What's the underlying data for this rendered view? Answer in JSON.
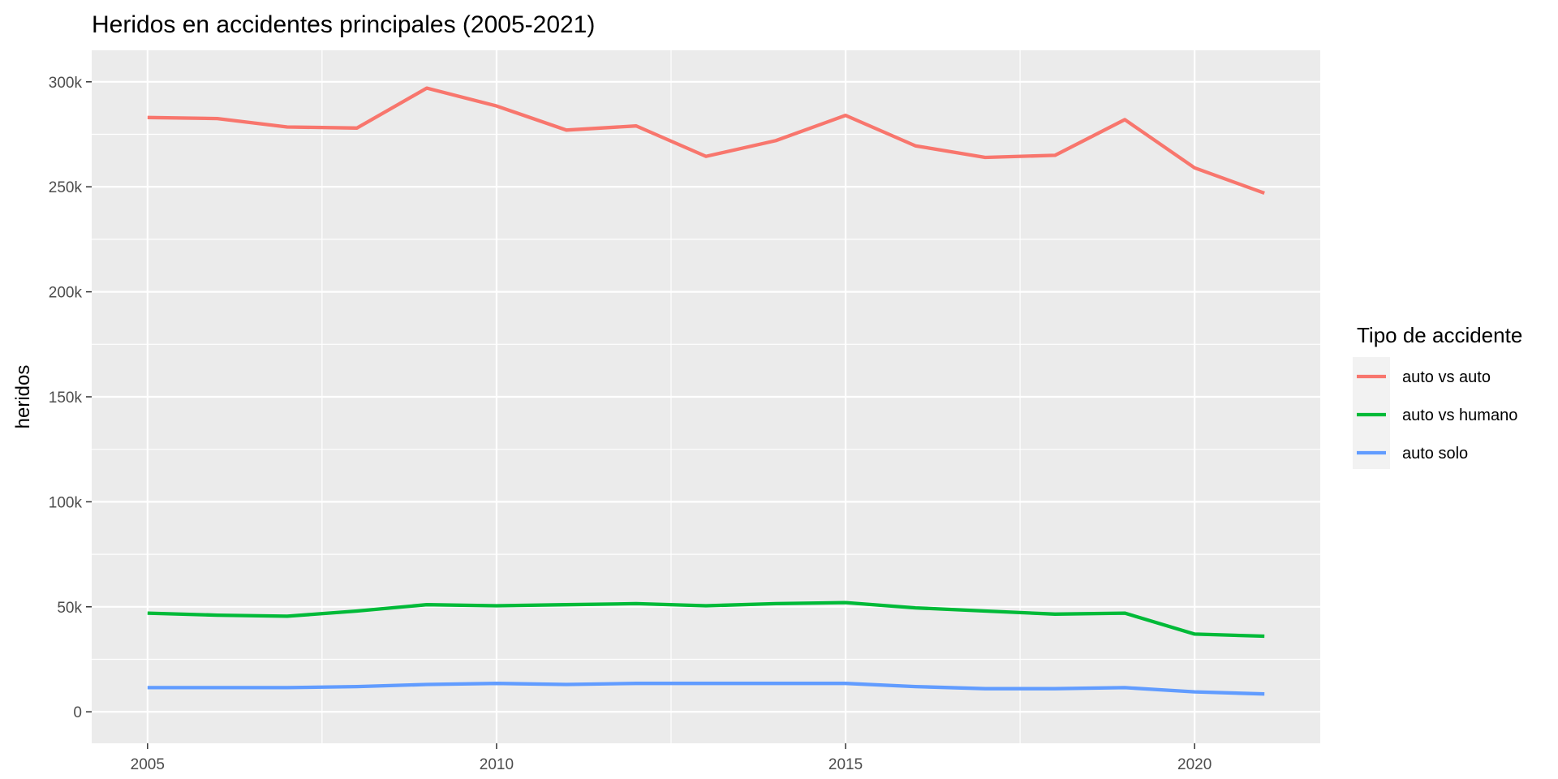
{
  "chart_data": {
    "type": "line",
    "title": "Heridos en accidentes principales (2005-2021)",
    "xlabel": "",
    "ylabel": "heridos",
    "x": [
      2005,
      2006,
      2007,
      2008,
      2009,
      2010,
      2011,
      2012,
      2013,
      2014,
      2015,
      2016,
      2017,
      2018,
      2019,
      2020,
      2021
    ],
    "xlim": [
      2004.2,
      2021.8
    ],
    "ylim": [
      -15000,
      315000
    ],
    "x_ticks": [
      2005,
      2010,
      2015,
      2020
    ],
    "x_tick_labels": [
      "2005",
      "2010",
      "2015",
      "2020"
    ],
    "y_ticks": [
      0,
      50000,
      100000,
      150000,
      200000,
      250000,
      300000
    ],
    "y_tick_labels": [
      "0",
      "50k",
      "100k",
      "150k",
      "200k",
      "250k",
      "300k"
    ],
    "grid": true,
    "legend": {
      "title": "Tipo de accidente",
      "position": "right"
    },
    "series": [
      {
        "name": "auto vs auto",
        "color": "#F8766D",
        "values": [
          283000,
          282500,
          278500,
          278000,
          297000,
          288500,
          277000,
          279000,
          264500,
          272000,
          284000,
          269500,
          264000,
          265000,
          282000,
          259000,
          247000
        ]
      },
      {
        "name": "auto vs humano",
        "color": "#00BA38",
        "values": [
          47000,
          46000,
          45500,
          48000,
          51000,
          50500,
          51000,
          51500,
          50500,
          51500,
          52000,
          49500,
          48000,
          46500,
          47000,
          37000,
          36000
        ]
      },
      {
        "name": "auto solo",
        "color": "#619CFF",
        "values": [
          11500,
          11500,
          11500,
          12000,
          13000,
          13500,
          13000,
          13500,
          13500,
          13500,
          13500,
          12000,
          11000,
          11000,
          11500,
          9500,
          8500
        ]
      }
    ]
  }
}
